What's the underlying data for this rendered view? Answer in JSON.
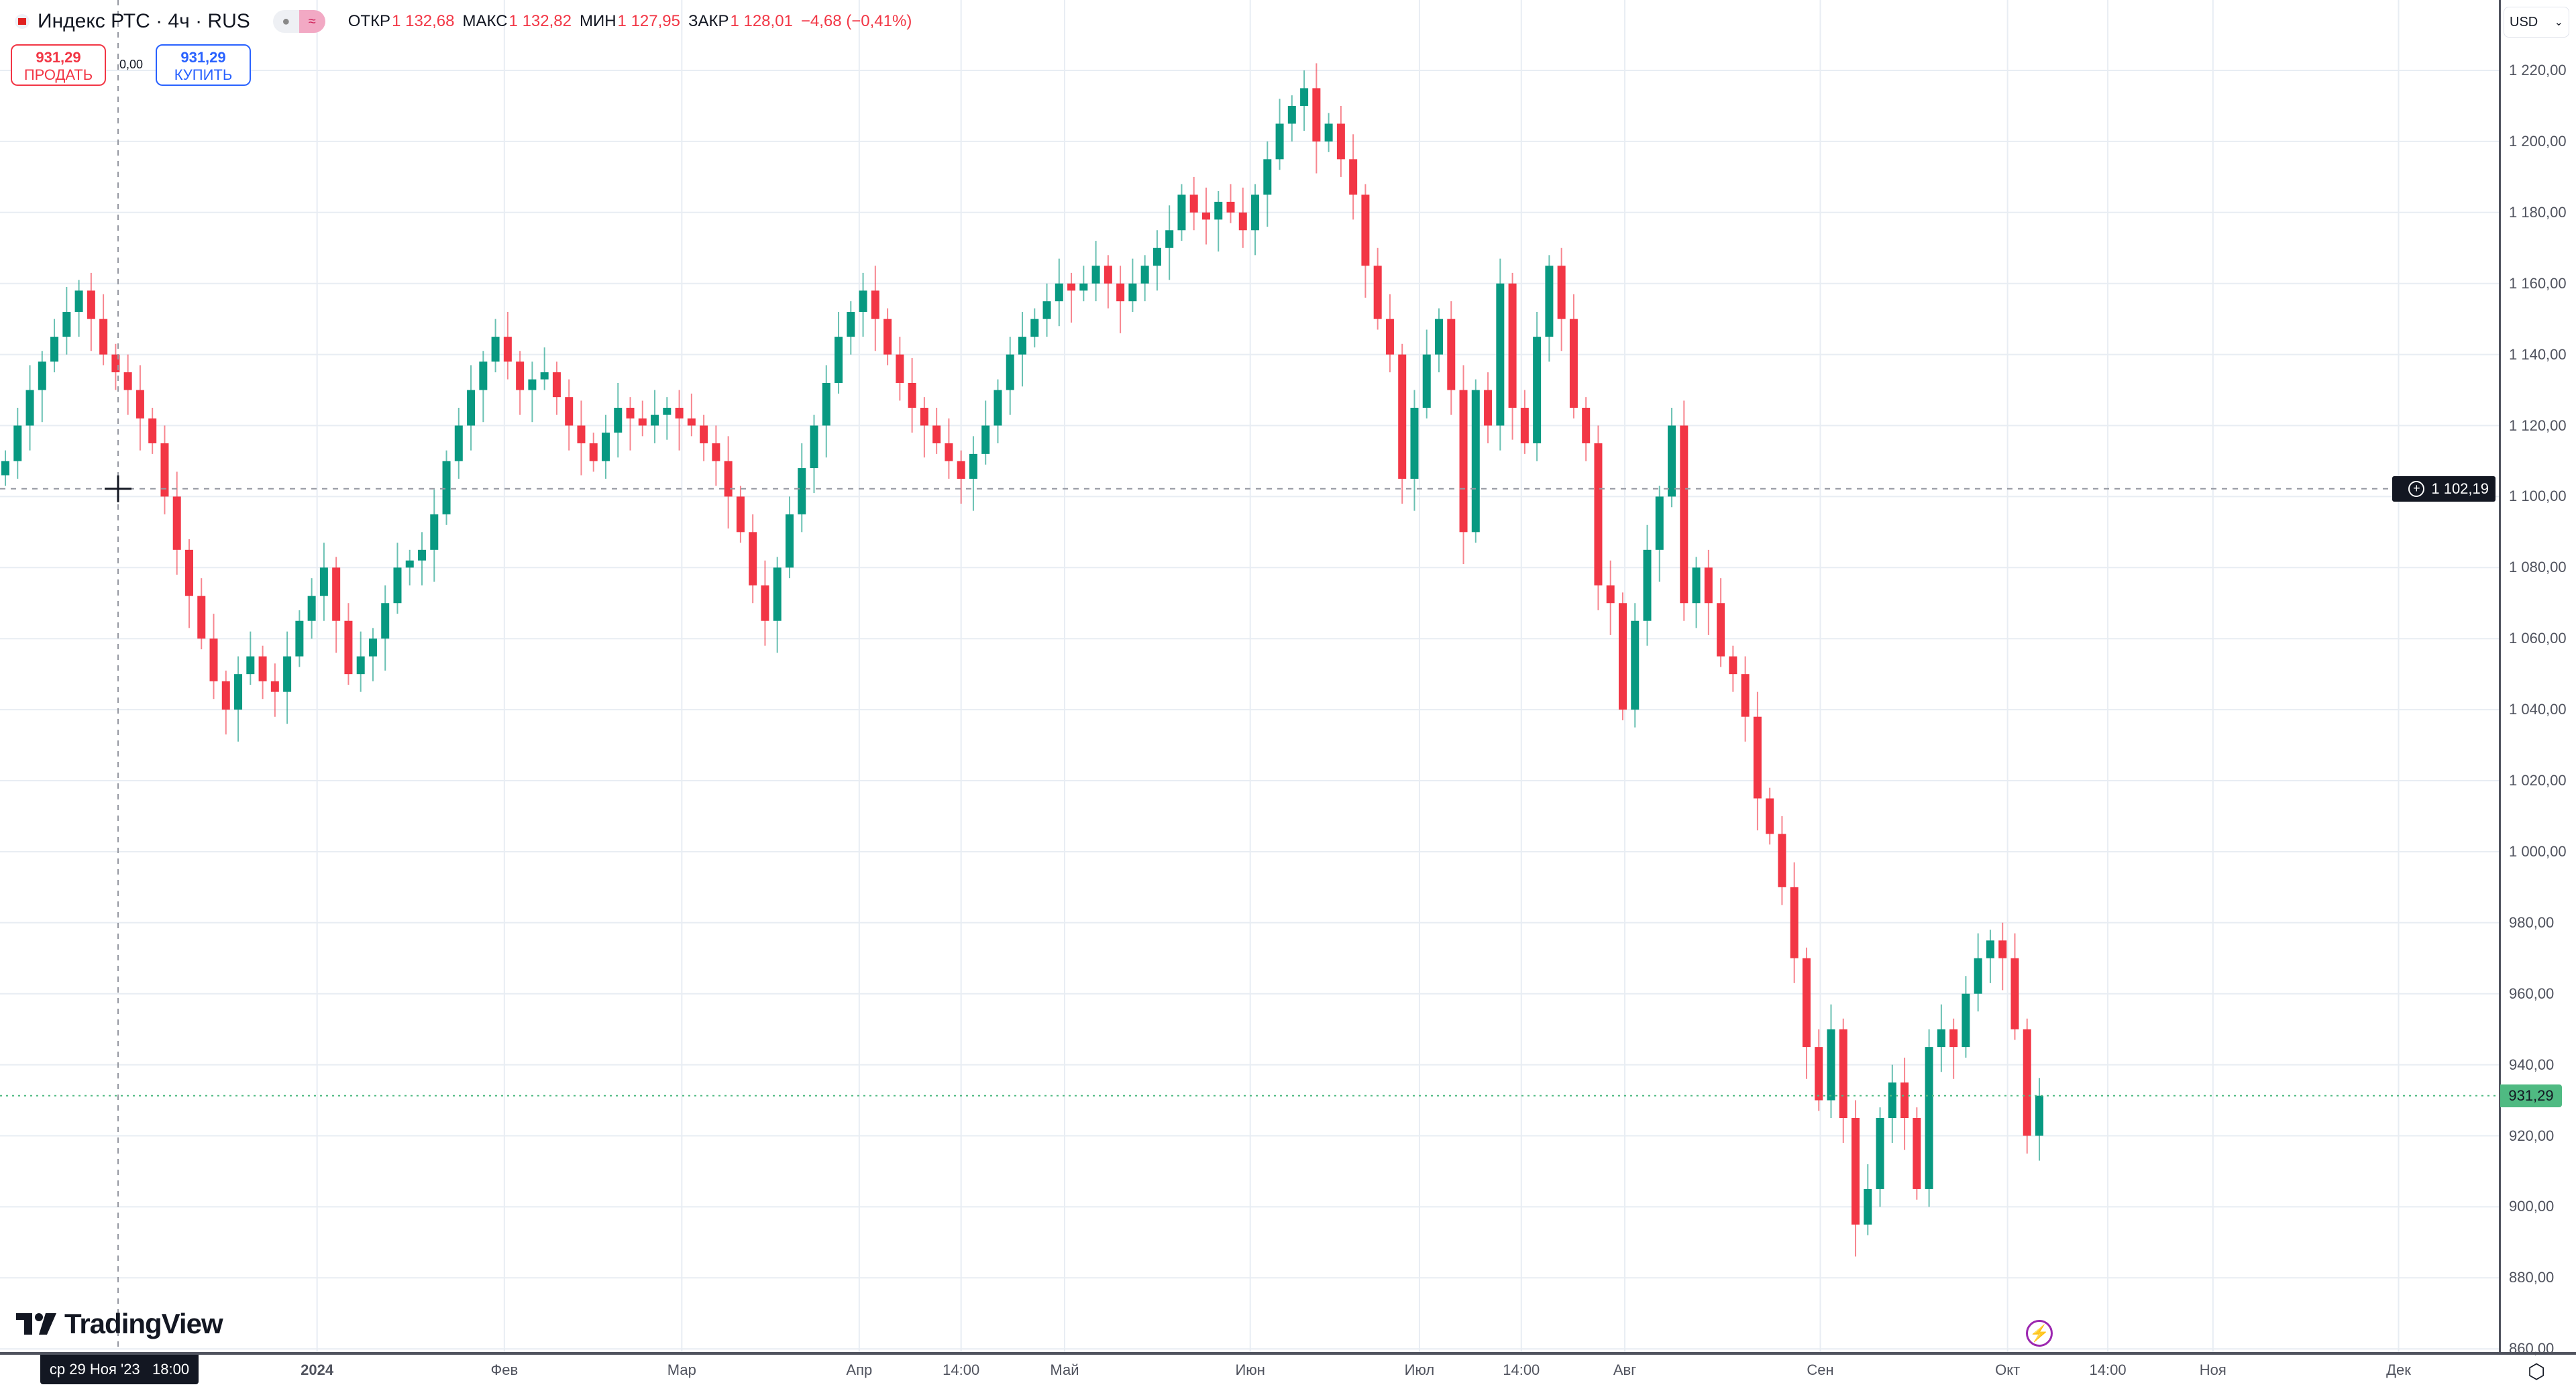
{
  "header": {
    "title": "Индекс РТС · 4ч · RUS",
    "toggle_left": "●",
    "toggle_right": "≈",
    "ohlc": [
      {
        "label": "ОТКР",
        "value": "1 132,68"
      },
      {
        "label": "МАКС",
        "value": "1 132,82"
      },
      {
        "label": "МИН",
        "value": "1 127,95"
      },
      {
        "label": "ЗАКР",
        "value": "1 128,01"
      }
    ],
    "change": "−4,68 (−0,41%)"
  },
  "trade": {
    "sell_price": "931,29",
    "sell_label": "ПРОДАТЬ",
    "spread": "0,00",
    "buy_price": "931,29",
    "buy_label": "КУПИТЬ"
  },
  "currency": "USD",
  "crosshair": {
    "price": "1 102,19",
    "date": "ср 29 Ноя '23",
    "time": "18:00"
  },
  "current_price_label": "931,29",
  "logo": "TradingView",
  "colors": {
    "up": "#089981",
    "down": "#f23645",
    "current": "#4fba82",
    "alert": "#9c27b0"
  },
  "icons": {
    "alert": "lightning-icon",
    "settings": "settings-icon",
    "dropdown": "chevron-down-icon"
  },
  "chart_data": {
    "type": "candlestick",
    "interval": "4h",
    "ylim": [
      860,
      1220
    ],
    "price_ticks": [
      "1 220,00",
      "1 200,00",
      "1 180,00",
      "1 160,00",
      "1 140,00",
      "1 120,00",
      "1 100,00",
      "1 080,00",
      "1 060,00",
      "1 040,00",
      "1 020,00",
      "1 000,00",
      "980,00",
      "960,00",
      "940,00",
      "920,00",
      "900,00",
      "880,00",
      "860,00"
    ],
    "price_tick_values": [
      1220,
      1200,
      1180,
      1160,
      1140,
      1120,
      1100,
      1080,
      1060,
      1040,
      1020,
      1000,
      980,
      960,
      940,
      920,
      900,
      880,
      860
    ],
    "time_ticks": [
      {
        "label": "2024",
        "bold": true
      },
      {
        "label": "Фев"
      },
      {
        "label": "Мар"
      },
      {
        "label": "Апр"
      },
      {
        "label": "14:00"
      },
      {
        "label": "Май"
      },
      {
        "label": "Июн"
      },
      {
        "label": "Июл"
      },
      {
        "label": "14:00"
      },
      {
        "label": "Авг"
      },
      {
        "label": "Сен"
      },
      {
        "label": "Окт"
      },
      {
        "label": "14:00"
      },
      {
        "label": "Ноя"
      },
      {
        "label": "Дек"
      }
    ],
    "current_price": 931.29,
    "crosshair_price": 1102.19,
    "closes": [
      1110,
      1120,
      1130,
      1138,
      1145,
      1152,
      1158,
      1150,
      1140,
      1135,
      1130,
      1122,
      1115,
      1100,
      1085,
      1072,
      1060,
      1048,
      1040,
      1050,
      1055,
      1048,
      1045,
      1055,
      1065,
      1072,
      1080,
      1065,
      1050,
      1055,
      1060,
      1070,
      1080,
      1082,
      1085,
      1095,
      1110,
      1120,
      1130,
      1138,
      1145,
      1138,
      1130,
      1133,
      1135,
      1128,
      1120,
      1115,
      1110,
      1118,
      1125,
      1122,
      1120,
      1123,
      1125,
      1122,
      1120,
      1115,
      1110,
      1100,
      1090,
      1075,
      1065,
      1080,
      1095,
      1108,
      1120,
      1132,
      1145,
      1152,
      1158,
      1150,
      1140,
      1132,
      1125,
      1120,
      1115,
      1110,
      1105,
      1112,
      1120,
      1130,
      1140,
      1145,
      1150,
      1155,
      1160,
      1158,
      1160,
      1165,
      1160,
      1155,
      1160,
      1165,
      1170,
      1175,
      1185,
      1180,
      1178,
      1183,
      1180,
      1175,
      1185,
      1195,
      1205,
      1210,
      1215,
      1200,
      1205,
      1195,
      1185,
      1165,
      1150,
      1140,
      1105,
      1125,
      1140,
      1150,
      1130,
      1090,
      1130,
      1120,
      1160,
      1125,
      1115,
      1145,
      1165,
      1150,
      1125,
      1115,
      1075,
      1070,
      1040,
      1065,
      1085,
      1100,
      1120,
      1070,
      1080,
      1070,
      1055,
      1050,
      1038,
      1015,
      1005,
      990,
      970,
      945,
      930,
      950,
      925,
      895,
      905,
      925,
      935,
      925,
      905,
      945,
      950,
      945,
      960,
      970,
      975,
      970,
      950,
      920,
      931.29
    ]
  }
}
